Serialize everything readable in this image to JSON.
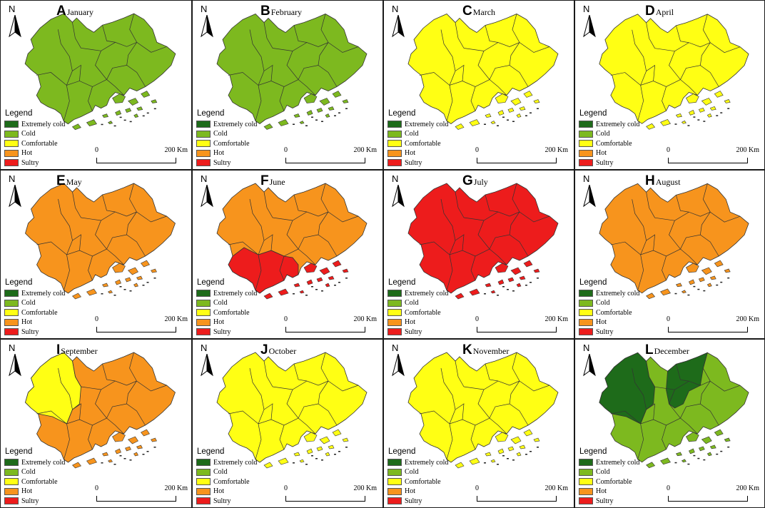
{
  "legend": {
    "title": "Legend",
    "categories": [
      {
        "key": "extremely_cold",
        "label": "Extremely cold",
        "color": "#1e6b1a"
      },
      {
        "key": "cold",
        "label": "Cold",
        "color": "#7db91f"
      },
      {
        "key": "comfortable",
        "label": "Comfortable",
        "color": "#ffff14"
      },
      {
        "key": "hot",
        "label": "Hot",
        "color": "#f7941d"
      },
      {
        "key": "sultry",
        "label": "Sultry",
        "color": "#ed1c1c"
      }
    ]
  },
  "north_label": "N",
  "scale": {
    "start": "0",
    "end": "200 Km"
  },
  "panels": [
    {
      "letter": "A",
      "month": "January",
      "fill": "cold"
    },
    {
      "letter": "B",
      "month": "February",
      "fill": "cold"
    },
    {
      "letter": "C",
      "month": "March",
      "fill": "comfortable"
    },
    {
      "letter": "D",
      "month": "April",
      "fill": "comfortable"
    },
    {
      "letter": "E",
      "month": "May",
      "fill": "hot"
    },
    {
      "letter": "F",
      "month": "June",
      "fill": "hot",
      "south": "sultry"
    },
    {
      "letter": "G",
      "month": "July",
      "fill": "sultry"
    },
    {
      "letter": "H",
      "month": "August",
      "fill": "hot"
    },
    {
      "letter": "I",
      "month": "September",
      "fill": "hot",
      "west": "comfortable"
    },
    {
      "letter": "J",
      "month": "October",
      "fill": "comfortable"
    },
    {
      "letter": "K",
      "month": "November",
      "fill": "comfortable"
    },
    {
      "letter": "L",
      "month": "December",
      "fill": "cold",
      "west": "extremely_cold",
      "northcenter": "extremely_cold"
    }
  ]
}
